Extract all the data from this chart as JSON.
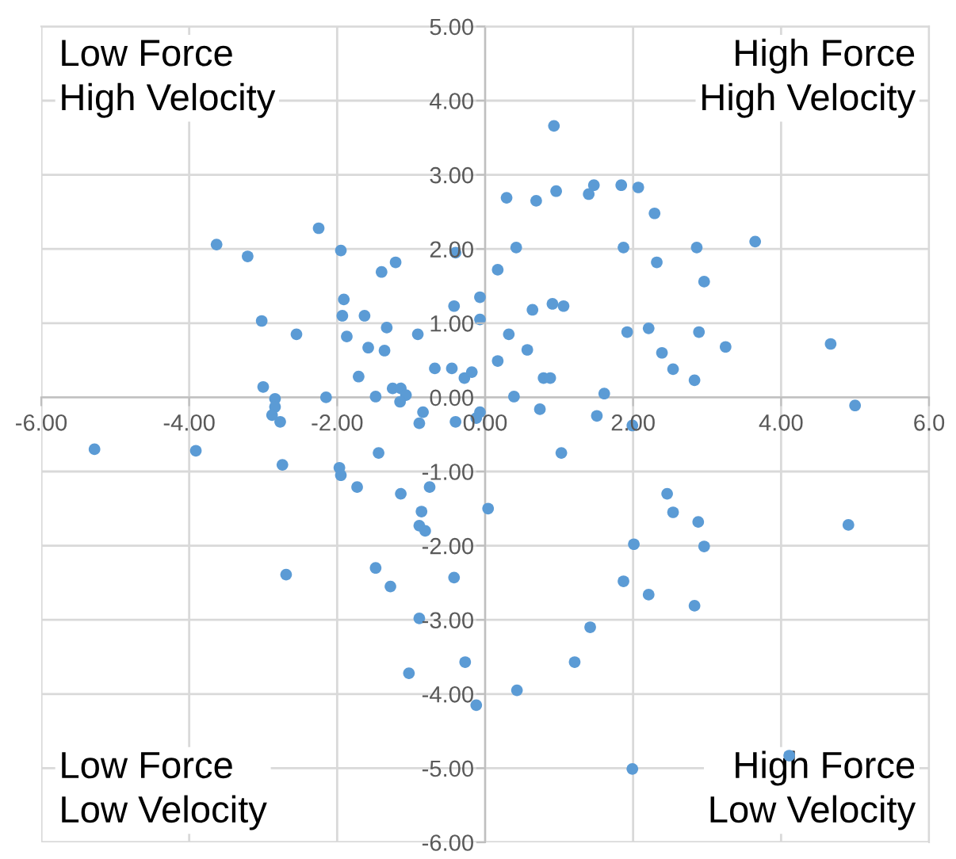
{
  "chart_data": {
    "type": "scatter",
    "color": "#5b9bd5",
    "marker": "circle",
    "grid": true,
    "xlim": [
      -6,
      6
    ],
    "ylim": [
      -6,
      5
    ],
    "xticks": [
      {
        "value": -6,
        "label": "-6.00"
      },
      {
        "value": -4,
        "label": "-4.00"
      },
      {
        "value": -2,
        "label": "-2.00"
      },
      {
        "value": 0,
        "label": "0.00"
      },
      {
        "value": 2,
        "label": "2.00"
      },
      {
        "value": 4,
        "label": "4.00"
      },
      {
        "value": 6,
        "label": "6.0"
      }
    ],
    "yticks": [
      {
        "value": -6,
        "label": "-6.00"
      },
      {
        "value": -5,
        "label": "-5.00"
      },
      {
        "value": -4,
        "label": "-4.00"
      },
      {
        "value": -3,
        "label": "-3.00"
      },
      {
        "value": -2,
        "label": "-2.00"
      },
      {
        "value": -1,
        "label": "-1.00"
      },
      {
        "value": 0,
        "label": "0.00"
      },
      {
        "value": 1,
        "label": "1.00"
      },
      {
        "value": 2,
        "label": "2.00"
      },
      {
        "value": 3,
        "label": "3.00"
      },
      {
        "value": 4,
        "label": "4.00"
      },
      {
        "value": 5,
        "label": "5.00"
      }
    ],
    "annotations": [
      "Low Force\nHigh Velocity",
      "High Force\nHigh Velocity",
      "Low Force\nLow Velocity",
      "High Force\nLow Velocity"
    ],
    "x": [
      -3.63,
      -3.21,
      -2.25,
      -1.95,
      -3.02,
      -2.55,
      -1.91,
      -1.93,
      -1.87,
      -1.63,
      -1.58,
      -1.4,
      -1.21,
      -1.33,
      -1.36,
      -0.91,
      -1.71,
      -0.68,
      -0.45,
      -0.28,
      -0.18,
      -0.42,
      -0.4,
      -0.07,
      -0.07,
      -3.0,
      -2.15,
      -1.48,
      -1.25,
      -1.14,
      -1.07,
      -1.15,
      -2.84,
      -2.84,
      -2.88,
      -2.77,
      -5.28,
      -3.91,
      -2.74,
      -1.97,
      -1.95,
      -1.44,
      -1.73,
      -1.14,
      -0.75,
      -0.89,
      -0.84,
      -0.4,
      -0.12,
      -0.86,
      -0.89,
      -0.81,
      -2.69,
      -1.48,
      -1.28,
      -0.42,
      -0.89,
      -0.27,
      -1.03,
      -0.12,
      0.93,
      0.29,
      0.69,
      0.96,
      1.4,
      1.47,
      1.84,
      2.07,
      2.29,
      0.42,
      0.17,
      1.87,
      2.32,
      2.86,
      2.96,
      3.65,
      0.64,
      0.91,
      1.06,
      0.32,
      0.57,
      0.17,
      1.92,
      2.21,
      2.89,
      2.39,
      2.54,
      2.83,
      3.25,
      4.67,
      0.79,
      0.88,
      0.39,
      1.61,
      5.0,
      -0.07,
      0.74,
      1.51,
      1.99,
      1.03,
      0.04,
      2.46,
      2.54,
      2.88,
      4.91,
      2.01,
      2.96,
      1.87,
      2.21,
      2.83,
      1.42,
      1.21,
      0.43,
      1.99,
      4.11
    ],
    "values": [
      2.06,
      1.9,
      2.28,
      1.98,
      1.03,
      0.85,
      1.32,
      1.1,
      0.82,
      1.1,
      0.67,
      1.69,
      1.82,
      0.94,
      0.63,
      0.85,
      0.28,
      0.39,
      0.39,
      0.26,
      0.34,
      1.23,
      1.95,
      1.35,
      1.05,
      0.14,
      0.0,
      0.01,
      0.12,
      0.12,
      0.03,
      -0.06,
      -0.02,
      -0.13,
      -0.24,
      -0.33,
      -0.7,
      -0.72,
      -0.91,
      -0.95,
      -1.05,
      -0.75,
      -1.21,
      -1.3,
      -1.21,
      -0.35,
      -0.2,
      -0.33,
      -0.28,
      -1.54,
      -1.73,
      -1.8,
      -2.39,
      -2.3,
      -2.55,
      -2.43,
      -2.98,
      -3.57,
      -3.72,
      -4.15,
      3.66,
      2.69,
      2.65,
      2.78,
      2.74,
      2.86,
      2.86,
      2.83,
      2.48,
      2.02,
      1.72,
      2.02,
      1.82,
      2.02,
      1.56,
      2.1,
      1.18,
      1.26,
      1.23,
      0.85,
      0.64,
      0.49,
      0.88,
      0.93,
      0.88,
      0.6,
      0.38,
      0.23,
      0.68,
      0.72,
      0.26,
      0.26,
      0.01,
      0.05,
      -0.11,
      -0.2,
      -0.16,
      -0.25,
      -0.38,
      -0.75,
      -1.5,
      -1.3,
      -1.55,
      -1.68,
      -1.72,
      -1.98,
      -2.01,
      -2.48,
      -2.66,
      -2.81,
      -3.1,
      -3.57,
      -3.95,
      -5.01,
      -4.83
    ]
  }
}
